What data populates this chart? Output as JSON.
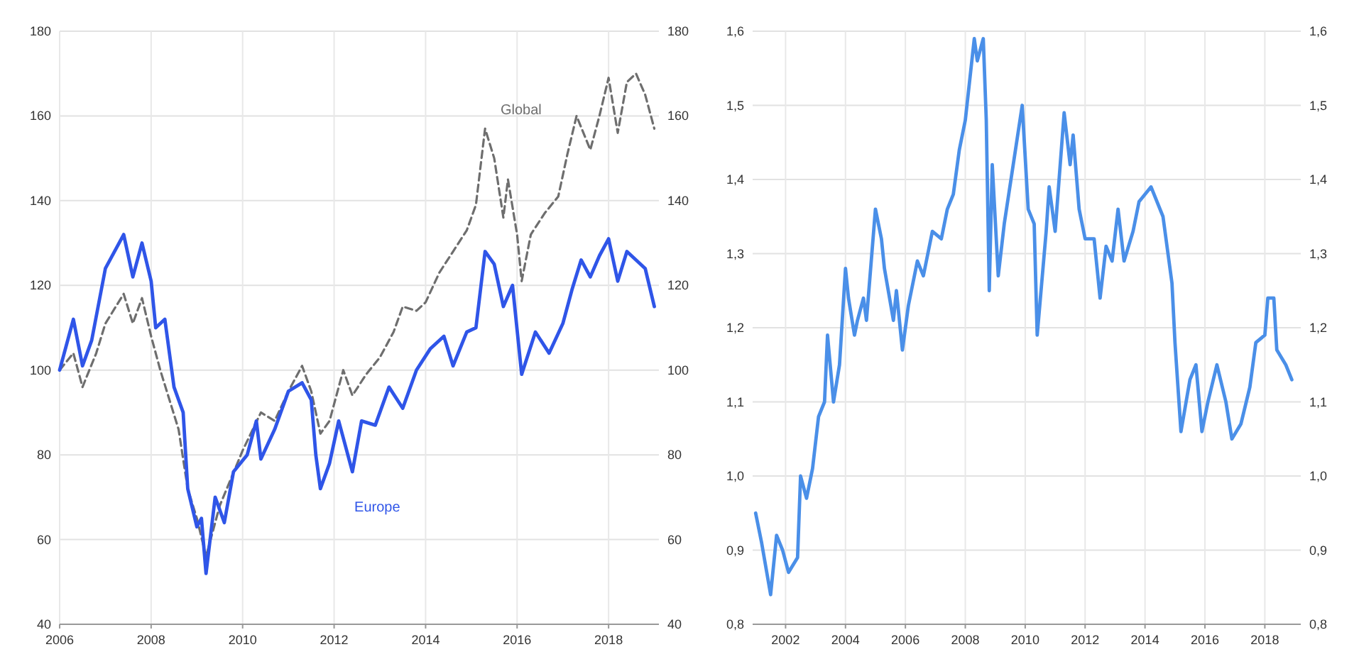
{
  "chart_data": [
    {
      "type": "line",
      "xlim": [
        2006,
        2019.1
      ],
      "xticks": [
        2006,
        2008,
        2010,
        2012,
        2014,
        2016,
        2018
      ],
      "ylim": [
        40,
        180
      ],
      "yticks": [
        40,
        60,
        80,
        100,
        120,
        140,
        160,
        180
      ],
      "y2lim": [
        40,
        180
      ],
      "y2ticks": [
        40,
        60,
        80,
        100,
        120,
        140,
        160,
        180
      ],
      "grid": true,
      "marker": "none",
      "series": [
        {
          "name": "Global",
          "color": "#6e6e6e",
          "line_style": "dashed",
          "x": [
            2006.0,
            2006.3,
            2006.5,
            2006.8,
            2007.0,
            2007.4,
            2007.6,
            2007.8,
            2008.0,
            2008.2,
            2008.4,
            2008.6,
            2008.8,
            2009.0,
            2009.2,
            2009.5,
            2010.0,
            2010.4,
            2010.7,
            2011.0,
            2011.3,
            2011.5,
            2011.7,
            2011.9,
            2012.2,
            2012.4,
            2012.7,
            2013.0,
            2013.3,
            2013.5,
            2013.8,
            2014.0,
            2014.3,
            2014.6,
            2014.9,
            2015.1,
            2015.3,
            2015.5,
            2015.7,
            2015.8,
            2016.0,
            2016.1,
            2016.3,
            2016.6,
            2016.9,
            2017.1,
            2017.3,
            2017.6,
            2017.8,
            2018.0,
            2018.2,
            2018.4,
            2018.6,
            2018.8,
            2019.0
          ],
          "values": [
            100,
            104,
            96,
            104,
            111,
            118,
            111,
            117,
            108,
            100,
            93,
            86,
            72,
            65,
            56,
            68,
            81,
            90,
            88,
            95,
            101,
            95,
            85,
            88,
            100,
            94,
            99,
            103,
            109,
            115,
            114,
            116,
            123,
            128,
            133,
            139,
            157,
            150,
            136,
            145,
            132,
            121,
            132,
            137,
            141,
            151,
            160,
            152,
            160,
            169,
            156,
            168,
            170,
            165,
            157
          ]
        },
        {
          "name": "Europe",
          "color": "#2f55e8",
          "line_style": "solid",
          "x": [
            2006.0,
            2006.3,
            2006.5,
            2006.7,
            2007.0,
            2007.4,
            2007.6,
            2007.8,
            2008.0,
            2008.1,
            2008.3,
            2008.5,
            2008.7,
            2008.8,
            2009.0,
            2009.1,
            2009.2,
            2009.4,
            2009.6,
            2009.8,
            2010.1,
            2010.3,
            2010.4,
            2010.7,
            2011.0,
            2011.3,
            2011.5,
            2011.6,
            2011.7,
            2011.9,
            2012.1,
            2012.4,
            2012.6,
            2012.9,
            2013.2,
            2013.5,
            2013.8,
            2014.1,
            2014.4,
            2014.6,
            2014.9,
            2015.1,
            2015.3,
            2015.5,
            2015.7,
            2015.9,
            2016.1,
            2016.4,
            2016.7,
            2017.0,
            2017.2,
            2017.4,
            2017.6,
            2017.8,
            2018.0,
            2018.2,
            2018.4,
            2018.6,
            2018.8,
            2019.0
          ],
          "values": [
            100,
            112,
            101,
            107,
            124,
            132,
            122,
            130,
            121,
            110,
            112,
            96,
            90,
            72,
            63,
            65,
            52,
            70,
            64,
            76,
            80,
            88,
            79,
            86,
            95,
            97,
            93,
            80,
            72,
            78,
            88,
            76,
            88,
            87,
            96,
            91,
            100,
            105,
            108,
            101,
            109,
            110,
            128,
            125,
            115,
            120,
            99,
            109,
            104,
            111,
            119,
            126,
            122,
            127,
            131,
            121,
            128,
            126,
            124,
            115
          ]
        }
      ]
    },
    {
      "type": "line",
      "xlim": [
        2000.9,
        2019.2
      ],
      "xticks": [
        2002,
        2004,
        2006,
        2008,
        2010,
        2012,
        2014,
        2016,
        2018
      ],
      "ylim": [
        0.8,
        1.6
      ],
      "yticks": [
        {
          "value": 0.8,
          "label": "0,8"
        },
        {
          "value": 0.9,
          "label": "0,9"
        },
        {
          "value": 1.0,
          "label": "1,0"
        },
        {
          "value": 1.1,
          "label": "1,1"
        },
        {
          "value": 1.2,
          "label": "1,2"
        },
        {
          "value": 1.3,
          "label": "1,3"
        },
        {
          "value": 1.4,
          "label": "1,4"
        },
        {
          "value": 1.5,
          "label": "1,5"
        },
        {
          "value": 1.6,
          "label": "1,6"
        }
      ],
      "y2lim": [
        0.8,
        1.6
      ],
      "y2ticks": [
        {
          "value": 0.8,
          "label": "0,8"
        },
        {
          "value": 0.9,
          "label": "0,9"
        },
        {
          "value": 1.0,
          "label": "1,0"
        },
        {
          "value": 1.1,
          "label": "1,1"
        },
        {
          "value": 1.2,
          "label": "1,2"
        },
        {
          "value": 1.3,
          "label": "1,3"
        },
        {
          "value": 1.4,
          "label": "1,4"
        },
        {
          "value": 1.5,
          "label": "1,5"
        },
        {
          "value": 1.6,
          "label": "1,6"
        }
      ],
      "grid": true,
      "marker": "none",
      "series": [
        {
          "color": "#4a8fe8",
          "line_style": "solid",
          "x": [
            2001.0,
            2001.2,
            2001.5,
            2001.7,
            2001.9,
            2002.1,
            2002.4,
            2002.5,
            2002.7,
            2002.9,
            2003.1,
            2003.3,
            2003.4,
            2003.6,
            2003.8,
            2004.0,
            2004.1,
            2004.3,
            2004.4,
            2004.6,
            2004.7,
            2005.0,
            2005.2,
            2005.3,
            2005.6,
            2005.7,
            2005.9,
            2006.1,
            2006.4,
            2006.6,
            2006.9,
            2007.2,
            2007.4,
            2007.6,
            2007.8,
            2008.0,
            2008.3,
            2008.4,
            2008.6,
            2008.7,
            2008.8,
            2008.9,
            2009.1,
            2009.3,
            2009.6,
            2009.9,
            2010.1,
            2010.3,
            2010.4,
            2010.7,
            2010.8,
            2011.0,
            2011.3,
            2011.5,
            2011.6,
            2011.8,
            2012.0,
            2012.3,
            2012.5,
            2012.7,
            2012.9,
            2013.1,
            2013.3,
            2013.6,
            2013.8,
            2014.2,
            2014.6,
            2014.9,
            2015.0,
            2015.2,
            2015.5,
            2015.7,
            2015.9,
            2016.1,
            2016.4,
            2016.7,
            2016.9,
            2017.2,
            2017.5,
            2017.7,
            2018.0,
            2018.1,
            2018.3,
            2018.4,
            2018.7,
            2018.9
          ],
          "values": [
            0.95,
            0.91,
            0.84,
            0.92,
            0.9,
            0.87,
            0.89,
            1.0,
            0.97,
            1.01,
            1.08,
            1.1,
            1.19,
            1.1,
            1.15,
            1.28,
            1.24,
            1.19,
            1.21,
            1.24,
            1.21,
            1.36,
            1.32,
            1.28,
            1.21,
            1.25,
            1.17,
            1.23,
            1.29,
            1.27,
            1.33,
            1.32,
            1.36,
            1.38,
            1.44,
            1.48,
            1.59,
            1.56,
            1.59,
            1.48,
            1.25,
            1.42,
            1.27,
            1.34,
            1.42,
            1.5,
            1.36,
            1.34,
            1.19,
            1.33,
            1.39,
            1.33,
            1.49,
            1.42,
            1.46,
            1.36,
            1.32,
            1.32,
            1.24,
            1.31,
            1.29,
            1.36,
            1.29,
            1.33,
            1.37,
            1.39,
            1.35,
            1.26,
            1.18,
            1.06,
            1.13,
            1.15,
            1.06,
            1.1,
            1.15,
            1.1,
            1.05,
            1.07,
            1.12,
            1.18,
            1.19,
            1.24,
            1.24,
            1.17,
            1.15,
            1.13
          ]
        }
      ]
    }
  ]
}
